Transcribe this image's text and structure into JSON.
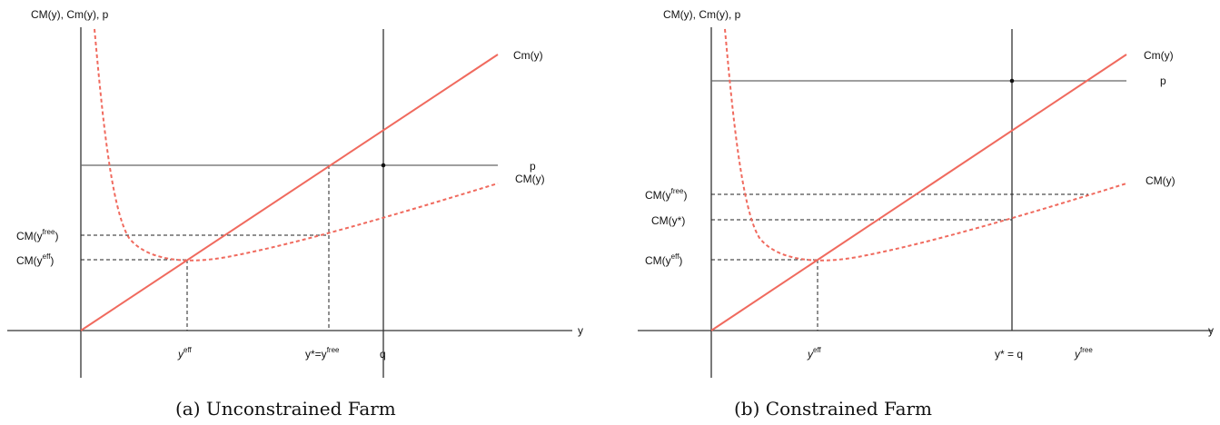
{
  "chart_data": [
    {
      "type": "line",
      "caption": "(a) Unconstrained Farm",
      "ylabel": "CM(y), Cm(y), p",
      "xlabel": "y",
      "series": [
        {
          "name": "Cm(y)",
          "style": "solid",
          "color": "#f06a5e"
        },
        {
          "name": "CM(y)",
          "style": "dashed",
          "color": "#f06a5e"
        }
      ],
      "price_label": "p",
      "y_labels": [
        "CM(y^free)",
        "CM(y^eff)"
      ],
      "x_labels": [
        "y^eff",
        "y*=y^free",
        "q"
      ]
    },
    {
      "type": "line",
      "caption": "(b) Constrained Farm",
      "ylabel": "CM(y), Cm(y), p",
      "xlabel": "y",
      "series": [
        {
          "name": "Cm(y)",
          "style": "solid",
          "color": "#f06a5e"
        },
        {
          "name": "CM(y)",
          "style": "dashed",
          "color": "#f06a5e"
        }
      ],
      "price_label": "p",
      "y_labels": [
        "CM(y^free)",
        "CM(y*)",
        "CM(y^eff)"
      ],
      "x_labels": [
        "y^eff",
        "y* = q",
        "y^free"
      ]
    }
  ],
  "text": {
    "a_ylabel": "CM(y), Cm(y), p",
    "a_xlabel": "y",
    "a_cm_label": "Cm(y)",
    "a_p_label": "p",
    "a_CM_label": "CM(y)",
    "a_cmfree_base": "CM(y",
    "a_cmfree_sup": "free",
    "a_cmeff_base": "CM(y",
    "a_cmeff_sup": "eff",
    "a_yeff_base": "y",
    "a_yeff_sup": "eff",
    "a_ystar_text": "y*=y",
    "a_ystar_sup": "free",
    "a_q": "q",
    "a_caption": "(a) Unconstrained Farm",
    "b_ylabel": "CM(y), Cm(y), p",
    "b_xlabel": "y",
    "b_cm_label": "Cm(y)",
    "b_p_label": "p",
    "b_CM_label": "CM(y)",
    "b_cmfree_base": "CM(y",
    "b_cmfree_sup": "free",
    "b_cmstar": "CM(y*)",
    "b_cmeff_base": "CM(y",
    "b_cmeff_sup": "eff",
    "b_yeff_base": "y",
    "b_yeff_sup": "eff",
    "b_ystarq": "y* = q",
    "b_yfree_base": "y",
    "b_yfree_sup": "free",
    "b_caption": "(b) Constrained Farm"
  }
}
